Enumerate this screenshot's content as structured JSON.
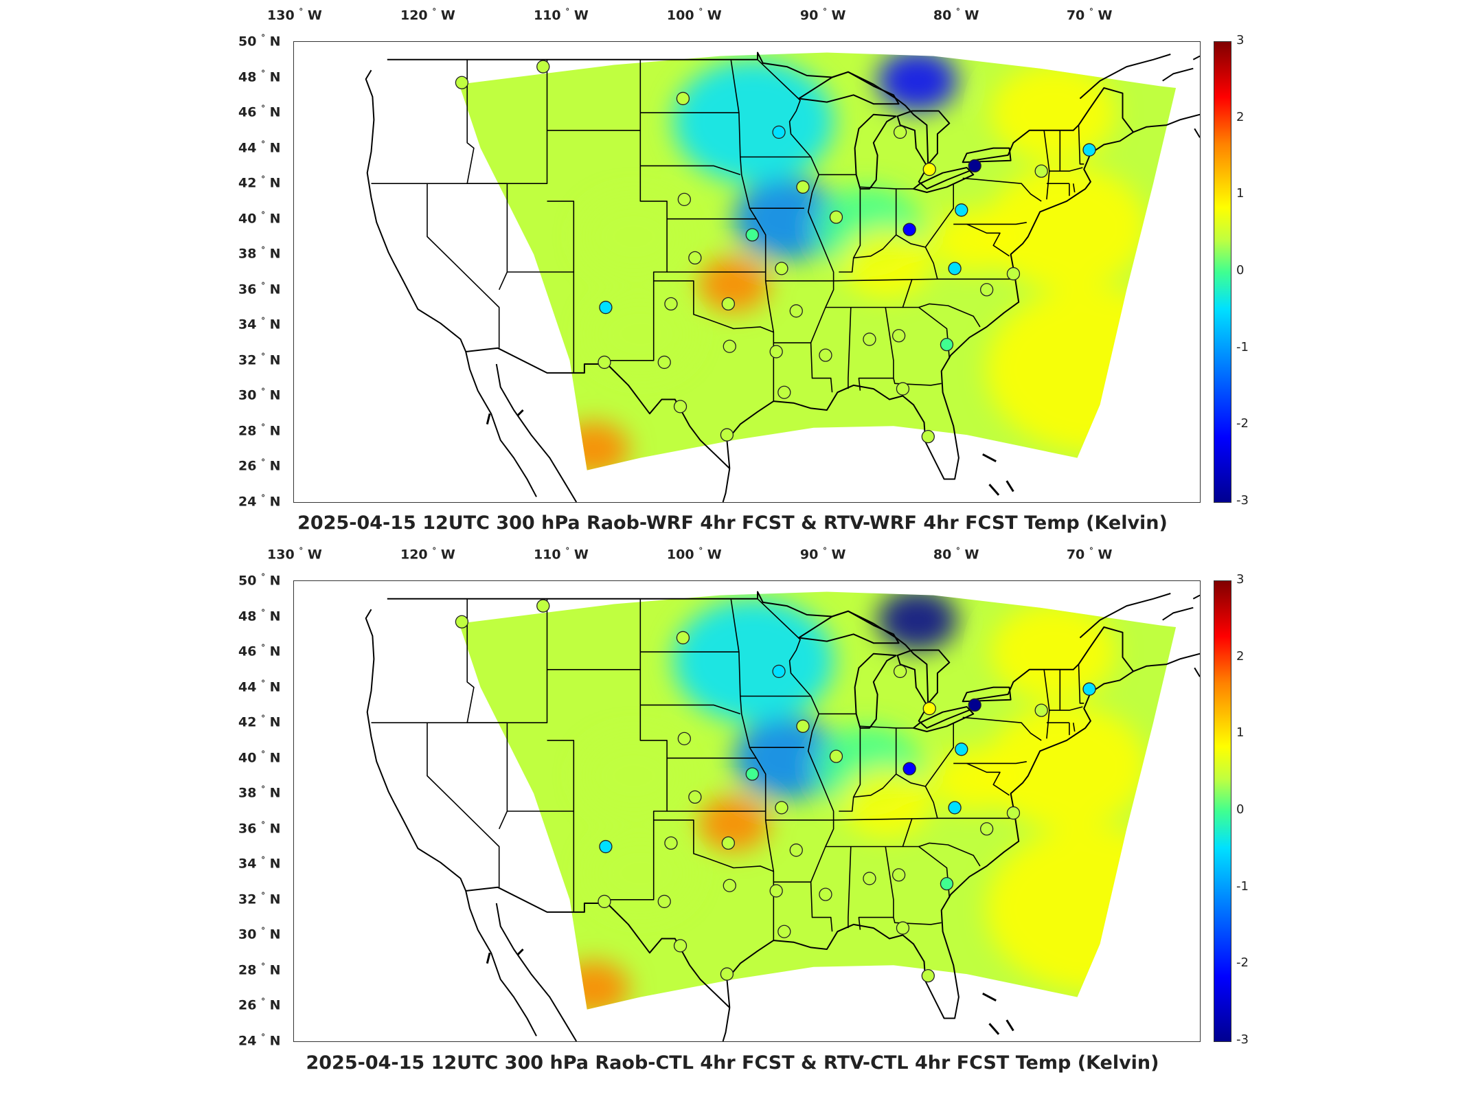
{
  "lon_labels": [
    "130",
    "120",
    "110",
    "100",
    "90",
    "80",
    "70"
  ],
  "lon_suffix": "W",
  "lat_labels": [
    "50",
    "48",
    "46",
    "44",
    "42",
    "40",
    "38",
    "36",
    "34",
    "32",
    "30",
    "28",
    "26",
    "24"
  ],
  "lat_suffix": "N",
  "degree_symbol": "°",
  "colorbar": {
    "ticks": [
      "3",
      "2",
      "1",
      "0",
      "-1",
      "-2",
      "-3"
    ],
    "colors": [
      "#00008f",
      "#0000ff",
      "#0080ff",
      "#00e0ff",
      "#40ff90",
      "#c0ff40",
      "#ffff00",
      "#ff8000",
      "#ff0000",
      "#800000"
    ],
    "range": [
      -3,
      3
    ]
  },
  "panels": [
    {
      "title": "2025-04-15 12UTC 300 hPa Raob-WRF 4hr FCST & RTV-WRF 4hr FCST Temp (Kelvin)"
    },
    {
      "title": "2025-04-15 12UTC 300 hPa Raob-CTL 4hr FCST & RTV-CTL 4hr FCST Temp (Kelvin)"
    }
  ],
  "map_extent": {
    "lon": [
      -130,
      -62
    ],
    "lat": [
      24,
      50
    ]
  },
  "stations": [
    {
      "lon": -117.4,
      "lat": 47.7,
      "value": 0.2
    },
    {
      "lon": -111.3,
      "lat": 48.6,
      "value": 0.1
    },
    {
      "lon": -100.8,
      "lat": 46.8,
      "value": 0.3
    },
    {
      "lon": -93.6,
      "lat": 44.9,
      "value": -0.6
    },
    {
      "lon": -84.5,
      "lat": 44.9,
      "value": 0.3
    },
    {
      "lon": -82.3,
      "lat": 42.8,
      "value": 0.8
    },
    {
      "lon": -78.9,
      "lat": 43.0,
      "value": -2.8
    },
    {
      "lon": -73.9,
      "lat": 42.7,
      "value": 0.3
    },
    {
      "lon": -70.3,
      "lat": 43.9,
      "value": -1.2
    },
    {
      "lon": -91.8,
      "lat": 41.8,
      "value": 0.2
    },
    {
      "lon": -100.7,
      "lat": 41.1,
      "value": 0.2
    },
    {
      "lon": -89.3,
      "lat": 40.1,
      "value": 0.3
    },
    {
      "lon": -79.9,
      "lat": 40.5,
      "value": -0.7
    },
    {
      "lon": -83.8,
      "lat": 39.4,
      "value": -1.8
    },
    {
      "lon": -95.6,
      "lat": 39.1,
      "value": -0.3
    },
    {
      "lon": -99.9,
      "lat": 37.8,
      "value": 0.1
    },
    {
      "lon": -93.4,
      "lat": 37.2,
      "value": 0.1
    },
    {
      "lon": -80.4,
      "lat": 37.2,
      "value": -1.1
    },
    {
      "lon": -78.0,
      "lat": 36.0,
      "value": 0.2
    },
    {
      "lon": -76.0,
      "lat": 36.9,
      "value": 0.2
    },
    {
      "lon": -106.6,
      "lat": 35.0,
      "value": -1.0
    },
    {
      "lon": -101.7,
      "lat": 35.2,
      "value": 0.3
    },
    {
      "lon": -97.4,
      "lat": 35.2,
      "value": 0.3
    },
    {
      "lon": -92.3,
      "lat": 34.8,
      "value": 0.2
    },
    {
      "lon": -86.8,
      "lat": 33.2,
      "value": 0.4
    },
    {
      "lon": -84.6,
      "lat": 33.4,
      "value": 0.3
    },
    {
      "lon": -81.0,
      "lat": 32.9,
      "value": -0.5
    },
    {
      "lon": -97.3,
      "lat": 32.8,
      "value": 0.2
    },
    {
      "lon": -93.8,
      "lat": 32.5,
      "value": 0.1
    },
    {
      "lon": -90.1,
      "lat": 32.3,
      "value": 0.4
    },
    {
      "lon": -106.7,
      "lat": 31.9,
      "value": 0.1
    },
    {
      "lon": -102.2,
      "lat": 31.9,
      "value": 0.2
    },
    {
      "lon": -93.2,
      "lat": 30.2,
      "value": 0.2
    },
    {
      "lon": -84.3,
      "lat": 30.4,
      "value": 0.2
    },
    {
      "lon": -101.0,
      "lat": 29.4,
      "value": 0.2
    },
    {
      "lon": -97.5,
      "lat": 27.8,
      "value": 0.2
    },
    {
      "lon": -82.4,
      "lat": 27.7,
      "value": 0.2
    }
  ]
}
